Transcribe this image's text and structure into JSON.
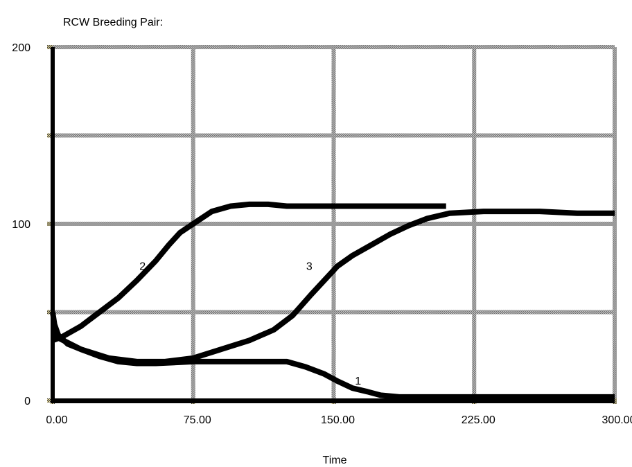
{
  "chart_data": {
    "type": "line",
    "title": "RCW  Breeding Pair:",
    "xlabel": "Time",
    "ylabel": "",
    "xlim": [
      0,
      300
    ],
    "ylim": [
      0,
      200
    ],
    "x_ticks": [
      0,
      75,
      150,
      225,
      300
    ],
    "x_tick_labels": [
      "0.00",
      "75.00",
      "150.00",
      "225.00",
      "300.00"
    ],
    "y_ticks": [
      0,
      100,
      200
    ],
    "y_tick_labels": [
      "0",
      "100",
      "200"
    ],
    "y_gridlines": [
      0,
      50,
      100,
      150,
      200
    ],
    "grid": true,
    "series": [
      {
        "name": "1",
        "label_at": [
          163,
          9
        ],
        "points": [
          [
            0,
            50
          ],
          [
            1,
            43
          ],
          [
            3,
            37
          ],
          [
            8,
            32
          ],
          [
            15,
            29
          ],
          [
            25,
            25
          ],
          [
            35,
            22
          ],
          [
            45,
            21
          ],
          [
            55,
            21
          ],
          [
            65,
            21.5
          ],
          [
            75,
            22
          ],
          [
            90,
            22
          ],
          [
            110,
            22
          ],
          [
            125,
            22
          ],
          [
            135,
            19
          ],
          [
            145,
            15
          ],
          [
            152,
            11
          ],
          [
            160,
            7
          ],
          [
            168,
            5
          ],
          [
            175,
            3
          ],
          [
            185,
            2
          ],
          [
            200,
            2
          ],
          [
            250,
            2
          ],
          [
            300,
            2
          ]
        ]
      },
      {
        "name": "2",
        "label_at": [
          48,
          74
        ],
        "points": [
          [
            0,
            34
          ],
          [
            5,
            36
          ],
          [
            15,
            42
          ],
          [
            25,
            50
          ],
          [
            35,
            58
          ],
          [
            45,
            68
          ],
          [
            55,
            79
          ],
          [
            62,
            88
          ],
          [
            68,
            95
          ],
          [
            75,
            100
          ],
          [
            85,
            107
          ],
          [
            95,
            110
          ],
          [
            105,
            111
          ],
          [
            115,
            111
          ],
          [
            125,
            110
          ],
          [
            150,
            110
          ],
          [
            175,
            110
          ],
          [
            200,
            110
          ],
          [
            210,
            110
          ]
        ]
      },
      {
        "name": "3",
        "label_at": [
          137,
          74
        ],
        "points": [
          [
            0,
            37
          ],
          [
            15,
            29
          ],
          [
            30,
            24
          ],
          [
            45,
            22
          ],
          [
            60,
            22
          ],
          [
            75,
            24
          ],
          [
            90,
            29
          ],
          [
            105,
            34
          ],
          [
            118,
            40
          ],
          [
            128,
            48
          ],
          [
            138,
            60
          ],
          [
            145,
            68
          ],
          [
            152,
            76
          ],
          [
            160,
            82
          ],
          [
            170,
            88
          ],
          [
            180,
            94
          ],
          [
            190,
            99
          ],
          [
            200,
            103
          ],
          [
            212,
            106
          ],
          [
            230,
            107
          ],
          [
            260,
            107
          ],
          [
            280,
            106
          ],
          [
            300,
            106
          ]
        ]
      }
    ]
  }
}
